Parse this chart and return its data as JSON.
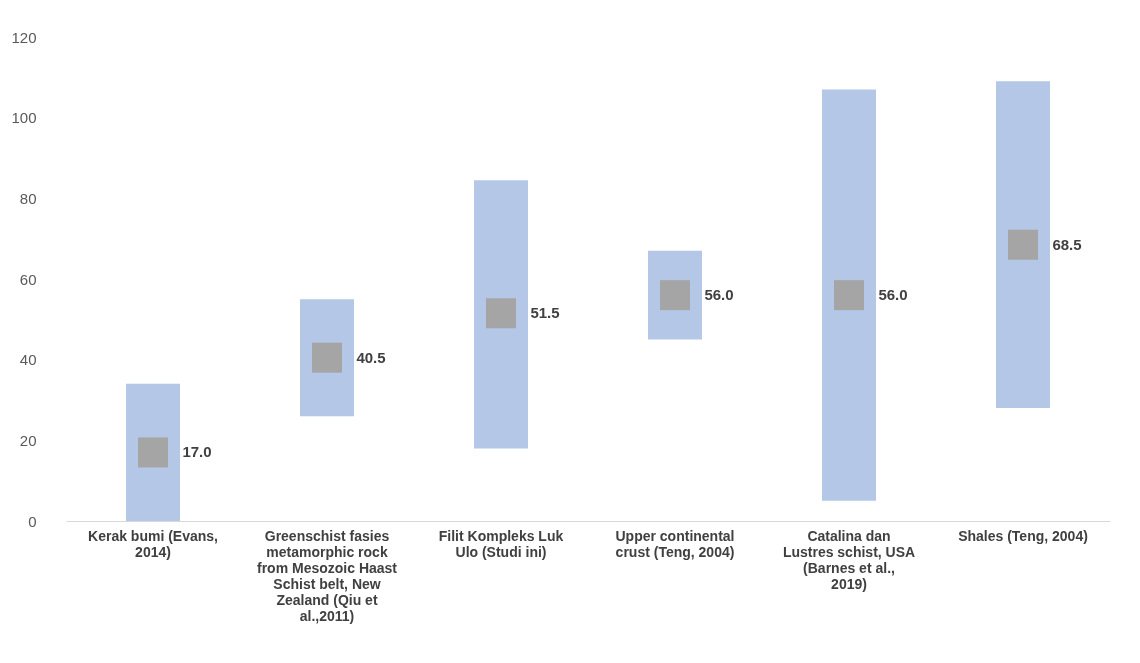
{
  "chart_data": {
    "type": "bar",
    "categories": [
      "Kerak bumi (Evans, 2014)",
      "Greenschist fasies metamorphic rock from Mesozoic Haast Schist belt, New Zealand (Qiu et al.,2011)",
      "Filit Kompleks Luk Ulo (Studi ini)",
      "Upper continental crust (Teng, 2004)",
      "Catalina dan Lustres schist, USA (Barnes et al., 2019)",
      "Shales (Teng, 2004)"
    ],
    "series": [
      {
        "color": "#b4c7e7",
        "base": [
          0,
          26,
          18,
          45,
          5,
          28
        ],
        "values": [
          34,
          29,
          66.5,
          22,
          102,
          81
        ]
      },
      {
        "type": "scatter",
        "marker": "square",
        "color": "#a5a5a5",
        "values": [
          17.0,
          40.5,
          51.5,
          56.0,
          56.0,
          68.5
        ],
        "value_labels": [
          "17.0",
          "40.5",
          "51.5",
          "56.0",
          "56.0",
          "68.5"
        ]
      }
    ],
    "ylim": [
      0,
      120
    ],
    "yticks": [
      0,
      20,
      40,
      60,
      80,
      100,
      120
    ],
    "grid": false
  }
}
